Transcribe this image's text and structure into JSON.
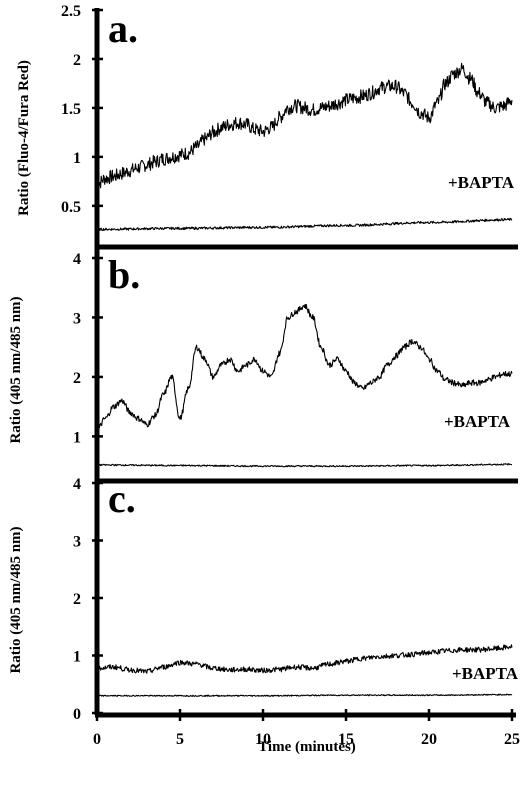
{
  "chart_data": [
    {
      "type": "line",
      "panel_label": "a.",
      "ylabel": "Ratio (Fluo-4/Fura Red)",
      "ylim": [
        0.1,
        2.5
      ],
      "yticks": [
        0.5,
        1,
        1.5,
        2,
        2.5
      ],
      "ytick_labels": [
        "0.5",
        "1",
        "1.5",
        "2",
        "2.5"
      ],
      "xlim": [
        0,
        25
      ],
      "annotation": "+BAPTA",
      "series": [
        {
          "x": [
            0,
            0.5,
            1,
            1.5,
            2,
            2.5,
            3,
            3.5,
            4,
            4.5,
            5,
            5.5,
            6,
            6.5,
            7,
            7.5,
            8,
            8.5,
            9,
            9.5,
            10,
            10.5,
            11,
            11.5,
            12,
            12.5,
            13,
            13.5,
            14,
            14.5,
            15,
            15.5,
            16,
            16.5,
            17,
            17.5,
            18,
            18.5,
            19,
            19.5,
            20,
            20.5,
            21,
            21.5,
            22,
            22.5,
            23,
            23.5,
            24,
            24.5,
            25
          ],
          "y": [
            0.72,
            0.78,
            0.8,
            0.83,
            0.86,
            0.89,
            0.92,
            0.95,
            0.98,
            1.0,
            1.02,
            1.04,
            1.1,
            1.18,
            1.25,
            1.3,
            1.33,
            1.35,
            1.33,
            1.28,
            1.26,
            1.3,
            1.4,
            1.5,
            1.52,
            1.5,
            1.48,
            1.5,
            1.52,
            1.55,
            1.58,
            1.6,
            1.62,
            1.65,
            1.7,
            1.72,
            1.72,
            1.65,
            1.55,
            1.45,
            1.4,
            1.55,
            1.75,
            1.85,
            1.9,
            1.8,
            1.65,
            1.55,
            1.5,
            1.52,
            1.58
          ],
          "noise": 0.07
        },
        {
          "name": "+BAPTA",
          "x": [
            0,
            5,
            10,
            15,
            20,
            25
          ],
          "y": [
            0.26,
            0.27,
            0.28,
            0.3,
            0.33,
            0.36
          ],
          "noise": 0.012
        }
      ]
    },
    {
      "type": "line",
      "panel_label": "b.",
      "ylabel": "Ratio (405 nm/485 nm)",
      "ylim": [
        0.3,
        4
      ],
      "yticks": [
        1,
        2,
        3,
        4
      ],
      "ytick_labels": [
        "1",
        "2",
        "3",
        "4"
      ],
      "xlim": [
        0,
        25
      ],
      "annotation": "+BAPTA",
      "series": [
        {
          "x": [
            0,
            0.5,
            1,
            1.5,
            2,
            2.5,
            3,
            3.5,
            4,
            4.5,
            5,
            5.5,
            6,
            6.5,
            7,
            7.5,
            8,
            8.5,
            9,
            9.5,
            10,
            10.5,
            11,
            11.5,
            12,
            12.5,
            13,
            13.5,
            14,
            14.5,
            15,
            15.5,
            16,
            16.5,
            17,
            17.5,
            18,
            18.5,
            19,
            19.5,
            20,
            20.5,
            21,
            21.5,
            22,
            22.5,
            23,
            23.5,
            24,
            24.5,
            25
          ],
          "y": [
            1.1,
            1.3,
            1.5,
            1.6,
            1.4,
            1.3,
            1.2,
            1.35,
            1.7,
            2.0,
            1.3,
            1.8,
            2.5,
            2.3,
            2.0,
            2.2,
            2.3,
            2.1,
            2.2,
            2.3,
            2.1,
            2.0,
            2.4,
            3.0,
            3.1,
            3.2,
            3.0,
            2.5,
            2.2,
            2.3,
            2.1,
            1.9,
            1.8,
            1.9,
            2.0,
            2.2,
            2.35,
            2.5,
            2.6,
            2.5,
            2.3,
            2.1,
            1.95,
            1.9,
            1.85,
            1.9,
            1.9,
            1.95,
            2.0,
            2.05,
            2.05
          ],
          "noise": 0.05
        },
        {
          "name": "+BAPTA",
          "x": [
            0,
            5,
            10,
            15,
            20,
            25
          ],
          "y": [
            0.52,
            0.51,
            0.5,
            0.5,
            0.51,
            0.53
          ],
          "noise": 0.012
        }
      ]
    },
    {
      "type": "line",
      "panel_label": "c.",
      "ylabel": "Ratio (405 nm/485 nm)",
      "ylim": [
        0,
        4
      ],
      "yticks": [
        0,
        1,
        2,
        3,
        4
      ],
      "ytick_labels": [
        "0",
        "1",
        "2",
        "3",
        "4"
      ],
      "xlim": [
        0,
        25
      ],
      "xticks": [
        0,
        5,
        10,
        15,
        20,
        25
      ],
      "xtick_labels": [
        "0",
        "5",
        "10",
        "15",
        "20",
        "25"
      ],
      "xlabel": "Time (minutes)",
      "annotation": "+BAPTA",
      "series": [
        {
          "x": [
            0,
            1,
            2,
            3,
            4,
            5,
            6,
            7,
            8,
            9,
            10,
            11,
            12,
            13,
            14,
            15,
            16,
            17,
            18,
            19,
            20,
            21,
            22,
            23,
            24,
            25
          ],
          "y": [
            0.78,
            0.8,
            0.75,
            0.72,
            0.8,
            0.88,
            0.85,
            0.78,
            0.75,
            0.76,
            0.74,
            0.76,
            0.8,
            0.78,
            0.85,
            0.9,
            0.95,
            0.98,
            1.0,
            1.02,
            1.05,
            1.08,
            1.1,
            1.1,
            1.12,
            1.15
          ],
          "noise": 0.045
        },
        {
          "name": "+BAPTA",
          "x": [
            0,
            5,
            10,
            15,
            20,
            25
          ],
          "y": [
            0.3,
            0.3,
            0.3,
            0.31,
            0.31,
            0.32
          ],
          "noise": 0.01
        }
      ]
    }
  ]
}
